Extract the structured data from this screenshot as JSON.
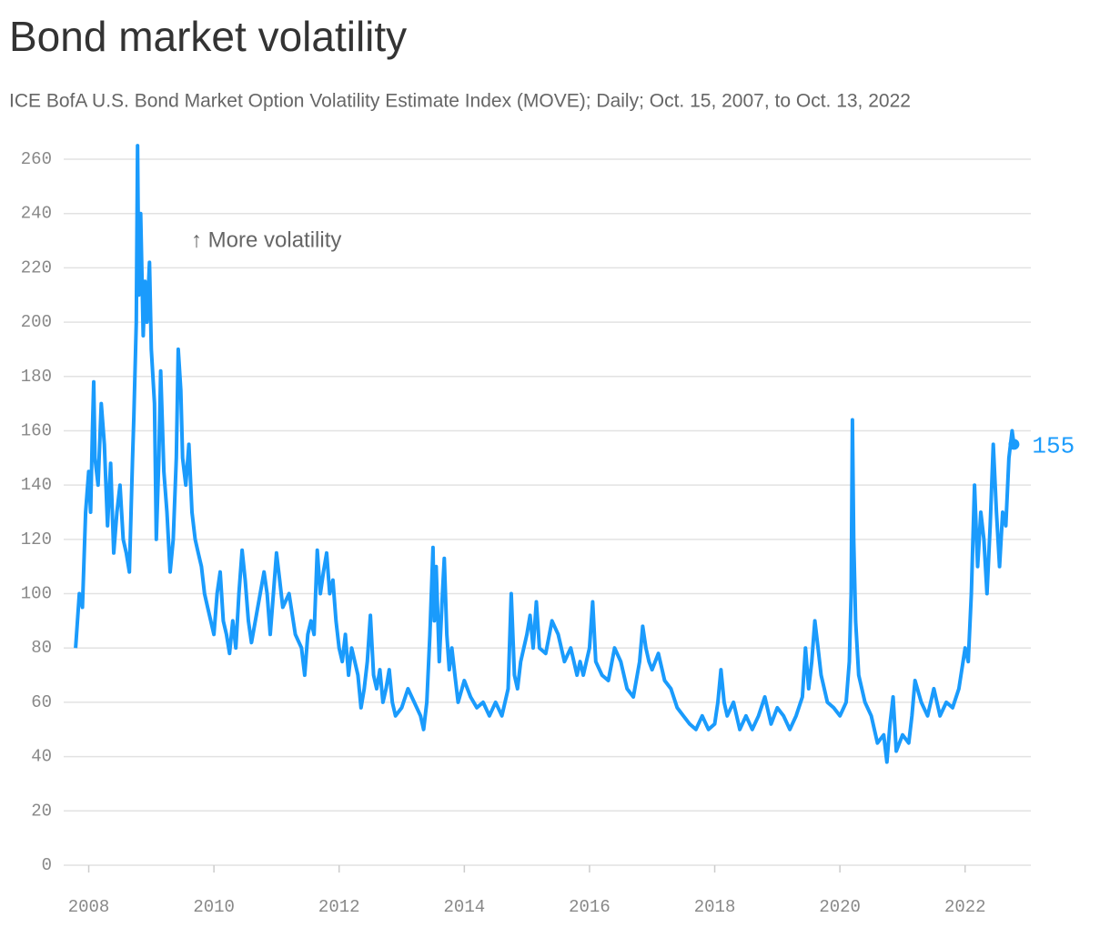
{
  "chart_data": {
    "type": "line",
    "title": "Bond market volatility",
    "subtitle": "ICE BofA U.S. Bond Market Option Volatility Estimate Index (MOVE); Daily; Oct. 15, 2007, to Oct. 13, 2022",
    "annotation": "↑ More volatility",
    "color": "#1a9bfc",
    "grid": true,
    "xlim": [
      2007.6,
      2023.05
    ],
    "xticks": [
      2008,
      2010,
      2012,
      2014,
      2016,
      2018,
      2020,
      2022
    ],
    "ylim": [
      0,
      260
    ],
    "yticks": [
      0,
      20,
      40,
      60,
      80,
      100,
      120,
      140,
      160,
      180,
      200,
      220,
      240,
      260
    ],
    "x": [
      2007.79,
      2007.85,
      2007.9,
      2007.95,
      2008.0,
      2008.03,
      2008.06,
      2008.08,
      2008.1,
      2008.15,
      2008.2,
      2008.25,
      2008.3,
      2008.35,
      2008.4,
      2008.45,
      2008.5,
      2008.55,
      2008.6,
      2008.65,
      2008.7,
      2008.72,
      2008.76,
      2008.78,
      2008.8,
      2008.83,
      2008.87,
      2008.9,
      2008.93,
      2008.97,
      2009.0,
      2009.05,
      2009.08,
      2009.12,
      2009.15,
      2009.2,
      2009.25,
      2009.3,
      2009.35,
      2009.4,
      2009.43,
      2009.47,
      2009.5,
      2009.55,
      2009.6,
      2009.65,
      2009.7,
      2009.75,
      2009.8,
      2009.85,
      2009.9,
      2010.0,
      2010.05,
      2010.1,
      2010.15,
      2010.2,
      2010.25,
      2010.3,
      2010.35,
      2010.4,
      2010.45,
      2010.5,
      2010.55,
      2010.6,
      2010.7,
      2010.8,
      2010.85,
      2010.9,
      2010.95,
      2011.0,
      2011.05,
      2011.1,
      2011.2,
      2011.3,
      2011.4,
      2011.45,
      2011.5,
      2011.55,
      2011.6,
      2011.65,
      2011.7,
      2011.75,
      2011.8,
      2011.85,
      2011.9,
      2011.95,
      2012.0,
      2012.05,
      2012.1,
      2012.15,
      2012.2,
      2012.3,
      2012.35,
      2012.4,
      2012.45,
      2012.5,
      2012.55,
      2012.6,
      2012.65,
      2012.7,
      2012.75,
      2012.8,
      2012.85,
      2012.9,
      2013.0,
      2013.1,
      2013.2,
      2013.3,
      2013.35,
      2013.4,
      2013.45,
      2013.5,
      2013.52,
      2013.55,
      2013.6,
      2013.65,
      2013.68,
      2013.72,
      2013.76,
      2013.8,
      2013.85,
      2013.9,
      2014.0,
      2014.1,
      2014.2,
      2014.3,
      2014.4,
      2014.5,
      2014.6,
      2014.7,
      2014.75,
      2014.8,
      2014.85,
      2014.9,
      2015.0,
      2015.05,
      2015.1,
      2015.15,
      2015.2,
      2015.3,
      2015.4,
      2015.5,
      2015.6,
      2015.7,
      2015.8,
      2015.85,
      2015.9,
      2016.0,
      2016.05,
      2016.1,
      2016.2,
      2016.3,
      2016.4,
      2016.5,
      2016.6,
      2016.7,
      2016.8,
      2016.85,
      2016.9,
      2016.95,
      2017.0,
      2017.1,
      2017.2,
      2017.3,
      2017.4,
      2017.5,
      2017.6,
      2017.7,
      2017.8,
      2017.9,
      2018.0,
      2018.05,
      2018.1,
      2018.15,
      2018.2,
      2018.3,
      2018.4,
      2018.5,
      2018.6,
      2018.7,
      2018.8,
      2018.9,
      2019.0,
      2019.1,
      2019.2,
      2019.3,
      2019.4,
      2019.45,
      2019.5,
      2019.55,
      2019.6,
      2019.65,
      2019.7,
      2019.8,
      2019.9,
      2020.0,
      2020.1,
      2020.15,
      2020.18,
      2020.2,
      2020.22,
      2020.25,
      2020.3,
      2020.4,
      2020.5,
      2020.6,
      2020.7,
      2020.75,
      2020.8,
      2020.85,
      2020.9,
      2021.0,
      2021.1,
      2021.15,
      2021.2,
      2021.3,
      2021.4,
      2021.5,
      2021.6,
      2021.7,
      2021.8,
      2021.9,
      2022.0,
      2022.05,
      2022.1,
      2022.15,
      2022.2,
      2022.25,
      2022.3,
      2022.35,
      2022.4,
      2022.45,
      2022.5,
      2022.55,
      2022.6,
      2022.65,
      2022.7,
      2022.75,
      2022.78
    ],
    "values": [
      80,
      100,
      95,
      130,
      145,
      130,
      160,
      178,
      150,
      140,
      170,
      155,
      125,
      148,
      115,
      130,
      140,
      120,
      115,
      108,
      150,
      165,
      200,
      265,
      210,
      240,
      195,
      215,
      200,
      222,
      190,
      170,
      120,
      150,
      182,
      145,
      130,
      108,
      120,
      150,
      190,
      175,
      150,
      140,
      155,
      130,
      120,
      115,
      110,
      100,
      95,
      85,
      100,
      108,
      90,
      85,
      78,
      90,
      80,
      100,
      116,
      105,
      90,
      82,
      95,
      108,
      100,
      85,
      100,
      115,
      105,
      95,
      100,
      85,
      80,
      70,
      85,
      90,
      85,
      116,
      100,
      108,
      115,
      100,
      105,
      90,
      80,
      75,
      85,
      70,
      80,
      70,
      58,
      65,
      75,
      92,
      70,
      65,
      72,
      60,
      65,
      72,
      60,
      55,
      58,
      65,
      60,
      55,
      50,
      60,
      85,
      117,
      90,
      110,
      75,
      100,
      113,
      85,
      72,
      80,
      70,
      60,
      68,
      62,
      58,
      60,
      55,
      60,
      55,
      65,
      100,
      70,
      65,
      75,
      85,
      92,
      80,
      97,
      80,
      78,
      90,
      85,
      75,
      80,
      70,
      75,
      70,
      80,
      97,
      75,
      70,
      68,
      80,
      75,
      65,
      62,
      75,
      88,
      80,
      75,
      72,
      78,
      68,
      65,
      58,
      55,
      52,
      50,
      55,
      50,
      52,
      60,
      72,
      60,
      55,
      60,
      50,
      55,
      50,
      55,
      62,
      52,
      58,
      55,
      50,
      55,
      62,
      80,
      65,
      75,
      90,
      80,
      70,
      60,
      58,
      55,
      60,
      75,
      100,
      164,
      120,
      90,
      70,
      60,
      55,
      45,
      48,
      38,
      52,
      62,
      42,
      48,
      45,
      55,
      68,
      60,
      55,
      65,
      55,
      60,
      58,
      65,
      80,
      75,
      100,
      140,
      110,
      130,
      120,
      100,
      125,
      155,
      130,
      110,
      130,
      125,
      150,
      160,
      155
    ]
  }
}
